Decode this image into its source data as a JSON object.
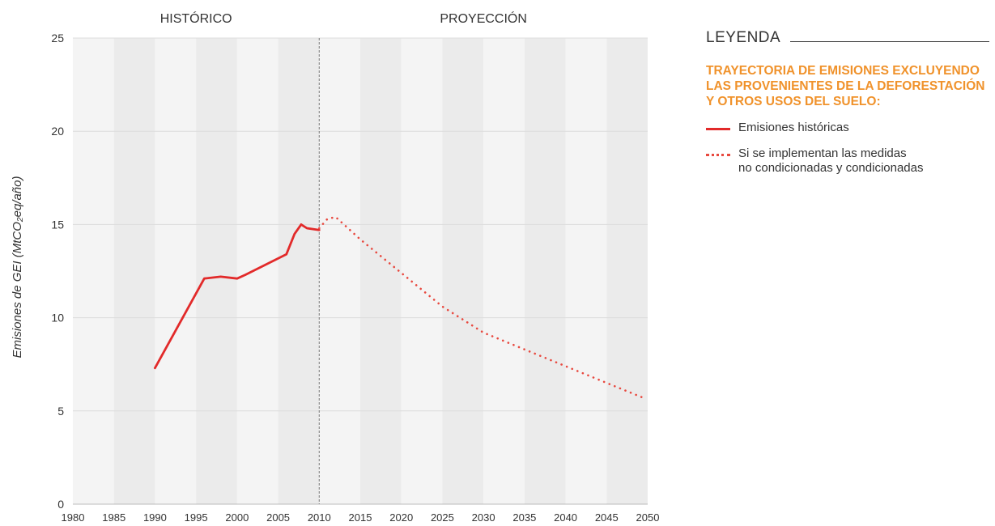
{
  "chart_data": {
    "type": "line",
    "section_labels": [
      "HISTÓRICO",
      "PROYECCIÓN"
    ],
    "ylabel": "Emisiones de GEI (MtCO₂eq/año)",
    "xlabel": "",
    "xlim": [
      1980,
      2050
    ],
    "ylim": [
      0,
      25
    ],
    "x_ticks": [
      1980,
      1985,
      1990,
      1995,
      2000,
      2005,
      2010,
      2015,
      2020,
      2025,
      2030,
      2035,
      2040,
      2045,
      2050
    ],
    "y_ticks": [
      0,
      5,
      10,
      15,
      20,
      25
    ],
    "divider_x": 2010,
    "series": [
      {
        "name": "Emisiones históricas",
        "style": "solid",
        "color": "#e22a2a",
        "points": [
          [
            1990,
            7.3
          ],
          [
            1996,
            12.1
          ],
          [
            1998,
            12.2
          ],
          [
            2000,
            12.1
          ],
          [
            2001,
            12.3
          ],
          [
            2006,
            13.4
          ],
          [
            2007,
            14.5
          ],
          [
            2007.8,
            15.0
          ],
          [
            2008.5,
            14.8
          ],
          [
            2010,
            14.7
          ]
        ]
      },
      {
        "name": "Si se implementan las medidas no condicionadas y condicionadas",
        "style": "dotted",
        "color": "#e8493f",
        "points": [
          [
            2010,
            14.8
          ],
          [
            2011,
            15.3
          ],
          [
            2012,
            15.4
          ],
          [
            2015,
            14.2
          ],
          [
            2020,
            12.4
          ],
          [
            2025,
            10.6
          ],
          [
            2030,
            9.2
          ],
          [
            2035,
            8.3
          ],
          [
            2040,
            7.4
          ],
          [
            2045,
            6.5
          ],
          [
            2049.5,
            5.7
          ]
        ]
      }
    ],
    "grid": true
  },
  "legend": {
    "title": "LEYENDA",
    "heading": "TRAYECTORIA DE EMISIONES EXCLUYENDO LAS PROVENIENTES DE LA DEFORESTACIÓN Y OTROS USOS DEL SUELO:",
    "items": [
      {
        "label": "Emisiones históricas",
        "style": "solid"
      },
      {
        "label_line1": "Si se implementan las medidas",
        "label_line2": "no condicionadas y condicionadas",
        "style": "dotted"
      }
    ]
  },
  "colors": {
    "historical": "#e22a2a",
    "projection": "#e8493f",
    "legend_heading": "#f0922b",
    "band_dark": "#ebebeb",
    "band_light": "#f4f4f4"
  }
}
